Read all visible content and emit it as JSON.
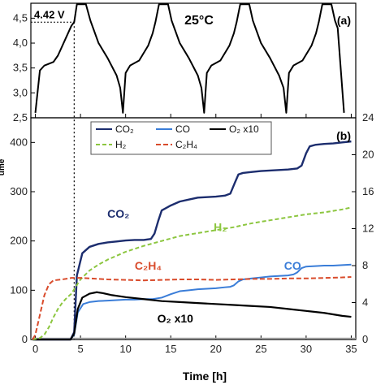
{
  "chart_data": [
    {
      "panel": "(a)",
      "type": "line",
      "title": "25°C",
      "ylim": [
        2.5,
        4.8
      ],
      "xlim": [
        -0.5,
        35.5
      ],
      "yticks": [
        "2,5",
        "3,0",
        "3,5",
        "4,0",
        "4,5"
      ],
      "ytick_values": [
        2.5,
        3.0,
        3.5,
        4.0,
        4.5
      ],
      "annotation": {
        "label": "4.42 V",
        "x": 4.3,
        "y": 4.42
      },
      "series": [
        {
          "color": "#000000",
          "x": [
            0,
            0.5,
            1,
            2,
            2.5,
            3,
            3.5,
            4,
            4.3,
            4.6,
            5.6,
            6.1,
            6.4,
            7,
            8,
            9,
            9.4,
            9.7,
            10,
            10.5,
            11.5,
            12.5,
            13,
            13.3,
            13.7,
            14.7,
            15.1,
            15.4,
            16,
            17,
            18,
            18.4,
            18.7,
            19,
            19.5,
            20.5,
            21.5,
            22,
            22.3,
            22.7,
            23.7,
            24.1,
            24.4,
            25,
            26,
            27,
            27.5,
            27.8,
            28.1,
            28.6,
            29.6,
            30.6,
            31.1,
            31.4,
            31.8,
            32.8,
            33.2,
            33.5,
            34.2
          ],
          "y": [
            2.6,
            3.45,
            3.55,
            3.62,
            3.75,
            3.95,
            4.15,
            4.35,
            4.42,
            4.78,
            4.78,
            4.45,
            4.3,
            4.0,
            3.7,
            3.35,
            3.1,
            2.6,
            3.4,
            3.55,
            3.65,
            3.95,
            4.2,
            4.42,
            4.78,
            4.78,
            4.45,
            4.3,
            4.0,
            3.7,
            3.35,
            3.1,
            2.6,
            3.4,
            3.55,
            3.65,
            3.95,
            4.2,
            4.42,
            4.78,
            4.78,
            4.45,
            4.3,
            4.0,
            3.7,
            3.35,
            3.1,
            2.6,
            3.4,
            3.55,
            3.65,
            3.95,
            4.2,
            4.42,
            4.78,
            4.78,
            4.45,
            4.3,
            2.6
          ]
        }
      ]
    },
    {
      "panel": "(b)",
      "type": "line",
      "xlabel": "Time [h]",
      "ylabel": "ume",
      "xlim": [
        -0.5,
        35.5
      ],
      "ylim": [
        0,
        450
      ],
      "y2lim": [
        0,
        24
      ],
      "xticks": [
        0,
        5,
        10,
        15,
        20,
        25,
        30,
        35
      ],
      "yticks": [
        0,
        100,
        200,
        300,
        400
      ],
      "y2ticks": [
        0,
        4,
        8,
        12,
        16,
        20,
        24
      ],
      "vline_x": 4.3,
      "legend": {
        "placement": "top-center",
        "entries": [
          "CO₂",
          "CO",
          "O₂ x10",
          "H₂",
          "C₂H₄"
        ]
      },
      "labels": [
        {
          "text": "CO₂",
          "color": "#1c2d6e",
          "x": 9.2,
          "y": 247
        },
        {
          "text": "H₂",
          "color": "#8cc63f",
          "x": 20.5,
          "y": 220
        },
        {
          "text": "C₂H₄",
          "color": "#d94b2b",
          "x": 12.5,
          "y": 142
        },
        {
          "text": "CO",
          "color": "#3a7dd8",
          "x": 28.5,
          "y": 142
        },
        {
          "text": "O₂ x10",
          "color": "#000000",
          "x": 15.5,
          "y": 35
        }
      ],
      "series": [
        {
          "name": "CO₂",
          "color": "#1c2d6e",
          "dash": "",
          "width": 2.4,
          "axis": "left",
          "x": [
            -0.3,
            3.9,
            4.3,
            4.6,
            5.2,
            6,
            7,
            8,
            9,
            10,
            11,
            12,
            12.8,
            13.2,
            13.6,
            14,
            15,
            16,
            17,
            18,
            19,
            20,
            21,
            21.6,
            22.1,
            22.5,
            23,
            24,
            25,
            26,
            27,
            28,
            29,
            29.5,
            30,
            30.4,
            31,
            32,
            33,
            34,
            35
          ],
          "y": [
            0,
            0,
            15,
            130,
            175,
            188,
            194,
            197,
            199,
            201,
            202,
            202,
            204,
            215,
            240,
            262,
            272,
            280,
            284,
            288,
            289,
            290,
            292,
            296,
            318,
            335,
            338,
            340,
            342,
            343,
            344,
            345,
            347,
            353,
            378,
            392,
            395,
            397,
            398,
            400,
            402
          ]
        },
        {
          "name": "CO",
          "color": "#3a7dd8",
          "dash": "",
          "width": 2,
          "axis": "left",
          "x": [
            -0.3,
            3.9,
            4.3,
            4.7,
            5.3,
            6,
            7,
            8,
            9,
            10,
            11,
            12,
            13,
            14,
            15,
            16,
            17,
            18,
            19,
            20,
            21,
            21.6,
            22,
            22.5,
            23,
            24,
            25,
            26,
            27,
            28,
            28.6,
            29,
            29.5,
            30,
            31,
            32,
            33,
            34,
            35
          ],
          "y": [
            0,
            0,
            10,
            55,
            72,
            76,
            78,
            79,
            80,
            81,
            81,
            82,
            82,
            85,
            92,
            98,
            100,
            102,
            103,
            104,
            106,
            107,
            110,
            118,
            122,
            124,
            126,
            128,
            129,
            130,
            132,
            136,
            145,
            148,
            149,
            150,
            150,
            151,
            152
          ]
        },
        {
          "name": "O₂ x10",
          "color": "#000000",
          "dash": "",
          "width": 2.2,
          "axis": "left",
          "x": [
            -0.3,
            3.9,
            4.3,
            4.7,
            5.2,
            6,
            6.8,
            7.5,
            8.5,
            10,
            12,
            14,
            16,
            18,
            20,
            22,
            24,
            26,
            28,
            30,
            32,
            34,
            35
          ],
          "y": [
            0,
            0,
            12,
            62,
            85,
            93,
            96,
            94,
            90,
            86,
            82,
            78,
            76,
            74,
            72,
            70,
            68,
            66,
            62,
            58,
            54,
            48,
            46
          ]
        },
        {
          "name": "H₂",
          "color": "#8cc63f",
          "dash": "5,3",
          "width": 2,
          "axis": "left",
          "x": [
            -0.3,
            0.5,
            1,
            1.5,
            2,
            2.5,
            3,
            3.5,
            4,
            4.5,
            5,
            6,
            7,
            8,
            9,
            10,
            12,
            14,
            16,
            18,
            20,
            22,
            24,
            26,
            28,
            30,
            32,
            34,
            35
          ],
          "y": [
            0,
            3,
            10,
            25,
            45,
            62,
            75,
            85,
            93,
            108,
            122,
            140,
            152,
            162,
            170,
            178,
            190,
            200,
            210,
            216,
            222,
            228,
            236,
            242,
            248,
            254,
            258,
            264,
            268
          ]
        },
        {
          "name": "C₂H₄",
          "color": "#d94b2b",
          "dash": "6,3",
          "width": 2,
          "axis": "left",
          "x": [
            -0.3,
            0,
            0.5,
            1,
            1.5,
            2,
            3,
            4,
            5,
            6,
            8,
            10,
            12,
            14,
            16,
            18,
            20,
            22,
            24,
            26,
            28,
            30,
            32,
            34,
            35
          ],
          "y": [
            0,
            10,
            50,
            90,
            112,
            120,
            122,
            125,
            125,
            124,
            122,
            121,
            120,
            121,
            122,
            122,
            121,
            122,
            123,
            123,
            124,
            124,
            125,
            126,
            127
          ]
        }
      ]
    }
  ]
}
